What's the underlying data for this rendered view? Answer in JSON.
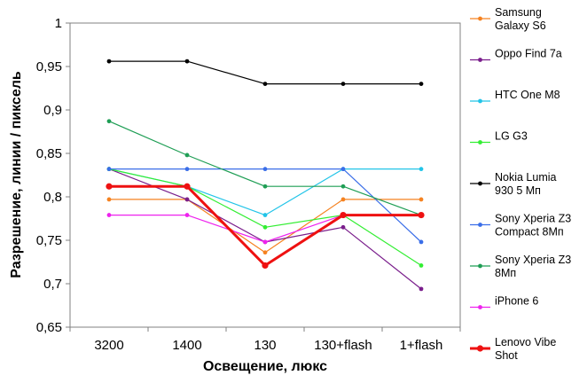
{
  "chart_data": {
    "type": "line",
    "xlabel": "Освещение,  люкс",
    "ylabel": "Разрешение,  линии / пиксель",
    "categories": [
      "3200",
      "1400",
      "130",
      "130+flash",
      "1+flash"
    ],
    "ylim": [
      0.65,
      1.0
    ],
    "yticks": [
      "0,65",
      "0,7",
      "0,75",
      "0,8",
      "0,85",
      "0,9",
      "0,95",
      "1"
    ],
    "ytick_values": [
      0.65,
      0.7,
      0.75,
      0.8,
      0.85,
      0.9,
      0.95,
      1.0
    ],
    "grid": false,
    "legend_position": "right",
    "series": [
      {
        "name": "Samsung Galaxy S6",
        "legend_lines": [
          "Samsung",
          "Galaxy S6"
        ],
        "color": "#f58220",
        "values": [
          0.797,
          0.797,
          0.736,
          0.797,
          0.797
        ]
      },
      {
        "name": "Oppo Find 7a",
        "legend_lines": [
          "Oppo Find 7a"
        ],
        "color": "#7a1e8c",
        "values": [
          0.832,
          0.797,
          0.748,
          0.765,
          0.694
        ]
      },
      {
        "name": "HTC One M8",
        "legend_lines": [
          "HTC One M8"
        ],
        "color": "#22c4e8",
        "values": [
          0.832,
          0.812,
          0.779,
          0.832,
          0.832
        ]
      },
      {
        "name": "LG G3",
        "legend_lines": [
          "LG G3"
        ],
        "color": "#33ee33",
        "values": [
          0.832,
          0.812,
          0.765,
          0.779,
          0.721
        ]
      },
      {
        "name": "Nokia Lumia 930 5 Мп",
        "legend_lines": [
          "Nokia Lumia",
          "930 5 Мп"
        ],
        "color": "#000000",
        "values": [
          0.956,
          0.956,
          0.93,
          0.93,
          0.93
        ]
      },
      {
        "name": "Sony Xperia Z3 Compact 8Мп",
        "legend_lines": [
          "Sony Xperia Z3",
          "Compact 8Мп"
        ],
        "color": "#3a6ee8",
        "values": [
          0.832,
          0.832,
          0.832,
          0.832,
          0.748
        ]
      },
      {
        "name": "Sony Xperia Z3 8Мп",
        "legend_lines": [
          "Sony Xperia Z3",
          "8Мп"
        ],
        "color": "#1f9e55",
        "values": [
          0.887,
          0.848,
          0.812,
          0.812,
          0.779
        ]
      },
      {
        "name": "iPhone 6",
        "legend_lines": [
          "iPhone 6"
        ],
        "color": "#ee22ee",
        "values": [
          0.779,
          0.779,
          0.748,
          0.779,
          0.779
        ]
      },
      {
        "name": "Lenovo Vibe Shot",
        "legend_lines": [
          "Lenovo Vibe",
          "Shot"
        ],
        "color": "#ee1111",
        "bold": true,
        "values": [
          0.812,
          0.812,
          0.721,
          0.779,
          0.779
        ]
      }
    ]
  }
}
